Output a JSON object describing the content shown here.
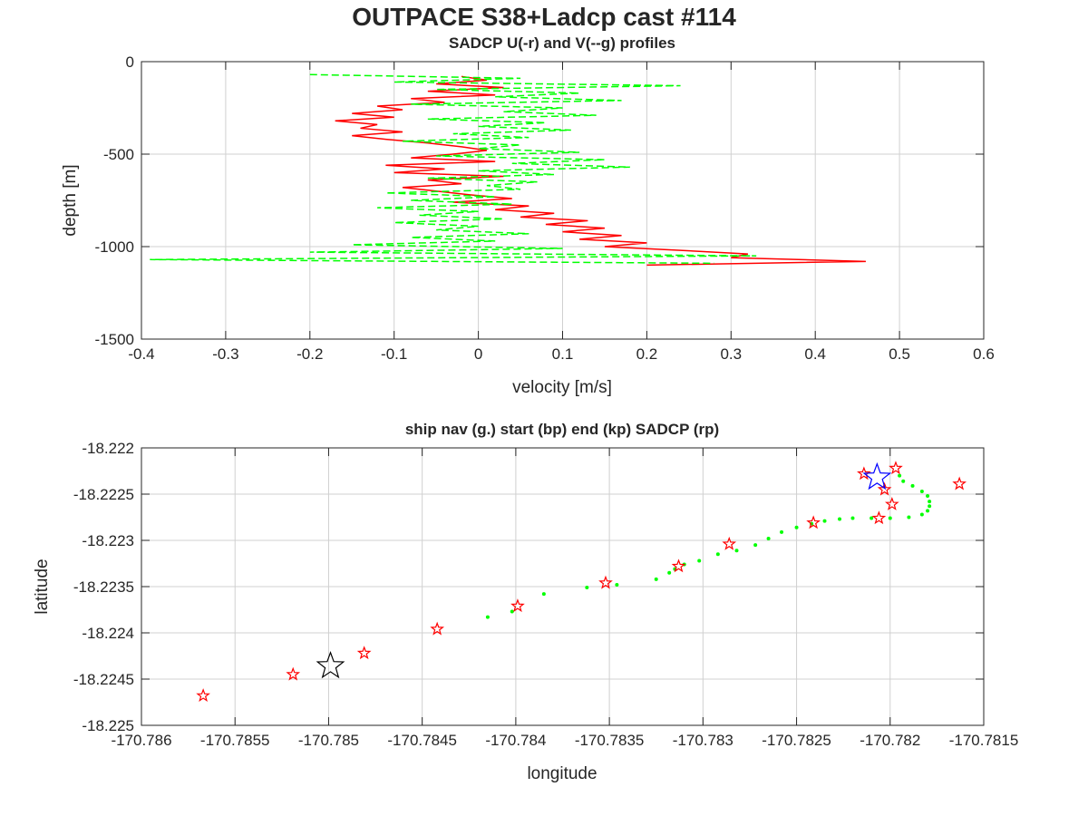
{
  "figure": {
    "title": "OUTPACE S38+Ladcp cast #114"
  },
  "chart_data": [
    {
      "type": "line",
      "title": "SADCP U(-r) and V(--g) profiles",
      "xlabel": "velocity [m/s]",
      "ylabel": "depth [m]",
      "xlim": [
        -0.4,
        0.6
      ],
      "ylim": [
        -1500,
        0
      ],
      "xticks": [
        "-0.4",
        "-0.3",
        "-0.2",
        "-0.1",
        "0",
        "0.1",
        "0.2",
        "0.3",
        "0.4",
        "0.5",
        "0.6"
      ],
      "yticks": [
        "0",
        "-500",
        "-1000",
        "-1500"
      ],
      "grid": true,
      "series": [
        {
          "name": "U",
          "color": "#ff0000",
          "style": "solid",
          "depth": [
            -80,
            -100,
            -120,
            -140,
            -160,
            -180,
            -200,
            -220,
            -240,
            -260,
            -280,
            -300,
            -320,
            -340,
            -360,
            -380,
            -400,
            -420,
            -440,
            -460,
            -480,
            -500,
            -520,
            -540,
            -560,
            -580,
            -600,
            -620,
            -640,
            -660,
            -680,
            -700,
            -720,
            -740,
            -760,
            -780,
            -800,
            -820,
            -840,
            -860,
            -880,
            -900,
            -920,
            -940,
            -960,
            -980,
            -1000,
            -1020,
            -1040,
            -1060,
            -1080,
            -1100
          ],
          "values": [
            -0.02,
            0.01,
            -0.05,
            0.03,
            -0.06,
            0.02,
            -0.08,
            -0.04,
            -0.12,
            -0.09,
            -0.15,
            -0.1,
            -0.17,
            -0.12,
            -0.14,
            -0.09,
            -0.15,
            -0.11,
            -0.06,
            -0.02,
            0.01,
            -0.03,
            -0.08,
            0.02,
            -0.11,
            -0.04,
            -0.1,
            0.03,
            -0.06,
            -0.02,
            -0.09,
            -0.05,
            -0.01,
            0.04,
            -0.03,
            0.06,
            0.02,
            0.09,
            0.05,
            0.13,
            0.08,
            0.15,
            0.1,
            0.17,
            0.12,
            0.2,
            0.15,
            0.24,
            0.32,
            0.3,
            0.46,
            0.2
          ]
        },
        {
          "name": "V",
          "color": "#00ff00",
          "style": "dashed",
          "depth": [
            -70,
            -90,
            -110,
            -130,
            -150,
            -170,
            -190,
            -210,
            -230,
            -250,
            -270,
            -290,
            -310,
            -330,
            -350,
            -370,
            -390,
            -410,
            -430,
            -450,
            -470,
            -490,
            -510,
            -530,
            -550,
            -570,
            -590,
            -610,
            -630,
            -650,
            -670,
            -690,
            -710,
            -730,
            -750,
            -770,
            -790,
            -810,
            -830,
            -850,
            -870,
            -890,
            -910,
            -930,
            -950,
            -970,
            -990,
            -1010,
            -1030,
            -1050,
            -1070,
            -1090
          ],
          "values": [
            -0.2,
            0.05,
            -0.1,
            0.24,
            -0.05,
            0.12,
            0.02,
            0.17,
            -0.08,
            0.1,
            0.03,
            0.14,
            -0.06,
            0.08,
            0.0,
            0.11,
            -0.03,
            0.06,
            -0.09,
            0.05,
            0.0,
            0.12,
            -0.05,
            0.15,
            0.04,
            0.18,
            0.0,
            0.09,
            -0.06,
            0.07,
            0.01,
            0.05,
            -0.11,
            0.02,
            -0.08,
            0.04,
            -0.12,
            0.0,
            -0.07,
            0.03,
            -0.1,
            0.0,
            -0.05,
            0.06,
            -0.08,
            0.02,
            -0.15,
            0.1,
            -0.2,
            0.33,
            -0.39,
            0.28
          ]
        }
      ]
    },
    {
      "type": "scatter",
      "title": "ship nav (g.) start (bp) end (kp) SADCP (rp)",
      "xlabel": "longitude",
      "ylabel": "latitude",
      "xlim": [
        -170.786,
        -170.7815
      ],
      "ylim": [
        -18.225,
        -18.222
      ],
      "xticks": [
        "-170.786",
        "-170.7855",
        "-170.785",
        "-170.7845",
        "-170.784",
        "-170.7835",
        "-170.783",
        "-170.7825",
        "-170.782",
        "-170.7815"
      ],
      "yticks": [
        "-18.222",
        "-18.2225",
        "-18.223",
        "-18.2235",
        "-18.224",
        "-18.2245",
        "-18.225"
      ],
      "grid": true,
      "series": [
        {
          "name": "ship nav",
          "color": "#00ff00",
          "marker": "dot",
          "points": [
            [
              -170.78415,
              -18.22383
            ],
            [
              -170.78402,
              -18.22377
            ],
            [
              -170.78385,
              -18.22358
            ],
            [
              -170.78362,
              -18.22351
            ],
            [
              -170.78346,
              -18.22348
            ],
            [
              -170.78325,
              -18.22342
            ],
            [
              -170.78318,
              -18.22335
            ],
            [
              -170.78315,
              -18.22331
            ],
            [
              -170.7831,
              -18.22326
            ],
            [
              -170.78302,
              -18.22322
            ],
            [
              -170.78292,
              -18.22315
            ],
            [
              -170.78282,
              -18.22311
            ],
            [
              -170.78272,
              -18.22305
            ],
            [
              -170.78265,
              -18.22298
            ],
            [
              -170.78258,
              -18.22291
            ],
            [
              -170.7825,
              -18.22286
            ],
            [
              -170.78242,
              -18.22282
            ],
            [
              -170.78235,
              -18.22279
            ],
            [
              -170.78227,
              -18.22277
            ],
            [
              -170.7822,
              -18.22276
            ],
            [
              -170.7821,
              -18.22276
            ],
            [
              -170.782,
              -18.22276
            ],
            [
              -170.7819,
              -18.22275
            ],
            [
              -170.78183,
              -18.22272
            ],
            [
              -170.7818,
              -18.22268
            ],
            [
              -170.78179,
              -18.22263
            ],
            [
              -170.78179,
              -18.22258
            ],
            [
              -170.7818,
              -18.22252
            ],
            [
              -170.78183,
              -18.22247
            ],
            [
              -170.78188,
              -18.22241
            ],
            [
              -170.78193,
              -18.22236
            ],
            [
              -170.78195,
              -18.2223
            ]
          ]
        },
        {
          "name": "SADCP",
          "color": "#ff0000",
          "marker": "star",
          "points": [
            [
              -170.78567,
              -18.22468
            ],
            [
              -170.78519,
              -18.22445
            ],
            [
              -170.78481,
              -18.22422
            ],
            [
              -170.78442,
              -18.22396
            ],
            [
              -170.78399,
              -18.22371
            ],
            [
              -170.78352,
              -18.22346
            ],
            [
              -170.78313,
              -18.22328
            ],
            [
              -170.78286,
              -18.22304
            ],
            [
              -170.78241,
              -18.22281
            ],
            [
              -170.78206,
              -18.22276
            ],
            [
              -170.78199,
              -18.22261
            ],
            [
              -170.78203,
              -18.22245
            ],
            [
              -170.78214,
              -18.22228
            ],
            [
              -170.78197,
              -18.22222
            ],
            [
              -170.78163,
              -18.22239
            ]
          ]
        },
        {
          "name": "start",
          "color": "#0000ff",
          "marker": "star-large",
          "points": [
            [
              -170.78207,
              -18.22232
            ]
          ]
        },
        {
          "name": "end",
          "color": "#000000",
          "marker": "star-large",
          "points": [
            [
              -170.78499,
              -18.22436
            ]
          ]
        }
      ]
    }
  ]
}
